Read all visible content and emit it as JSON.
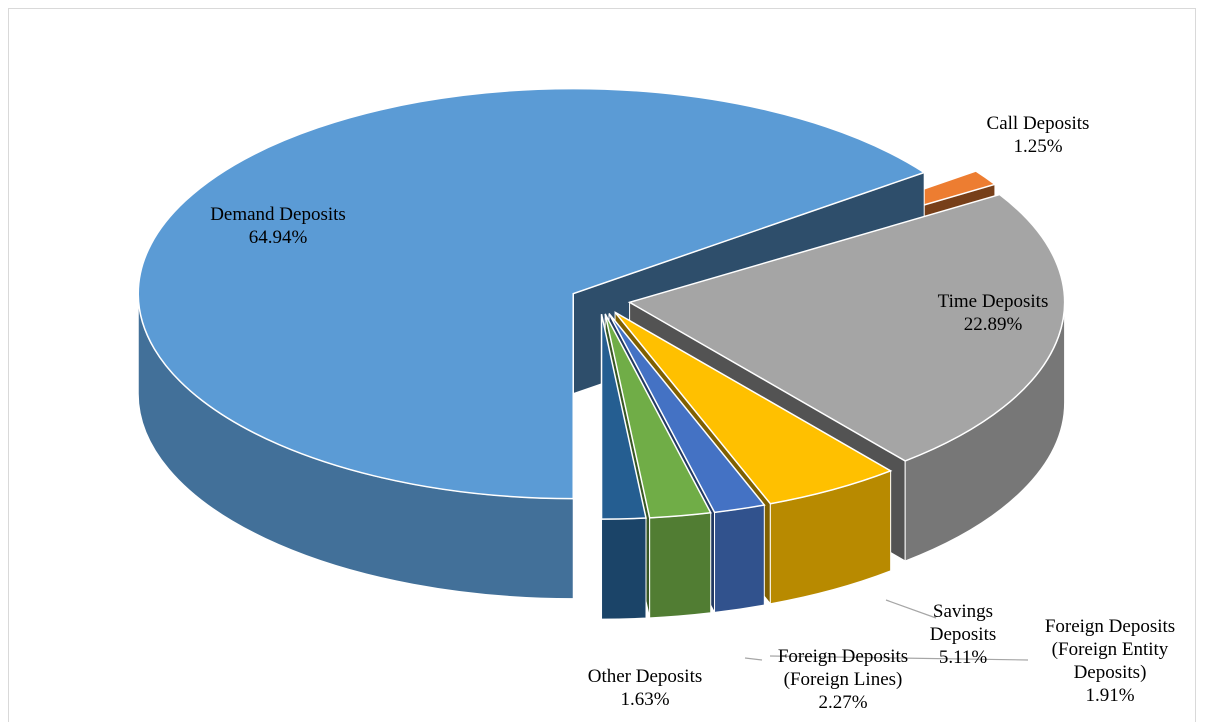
{
  "chart_data": {
    "type": "pie3d",
    "categories": [
      "Demand Deposits",
      "Call Deposits",
      "Time Deposits",
      "Savings Deposits",
      "Foreign Deposits (Foreign Entity Deposits)",
      "Foreign Deposits (Foreign Lines)",
      "Other Deposits"
    ],
    "values": [
      64.94,
      1.25,
      22.89,
      5.11,
      1.91,
      2.27,
      1.63
    ],
    "value_labels": [
      "64.94%",
      "1.25%",
      "22.89%",
      "5.11%",
      "1.91%",
      "2.27%",
      "1.63%"
    ],
    "colors": [
      "#5b9bd5",
      "#ed7d31",
      "#a5a5a5",
      "#ffc000",
      "#4472c4",
      "#70ad47",
      "#255e91"
    ]
  }
}
